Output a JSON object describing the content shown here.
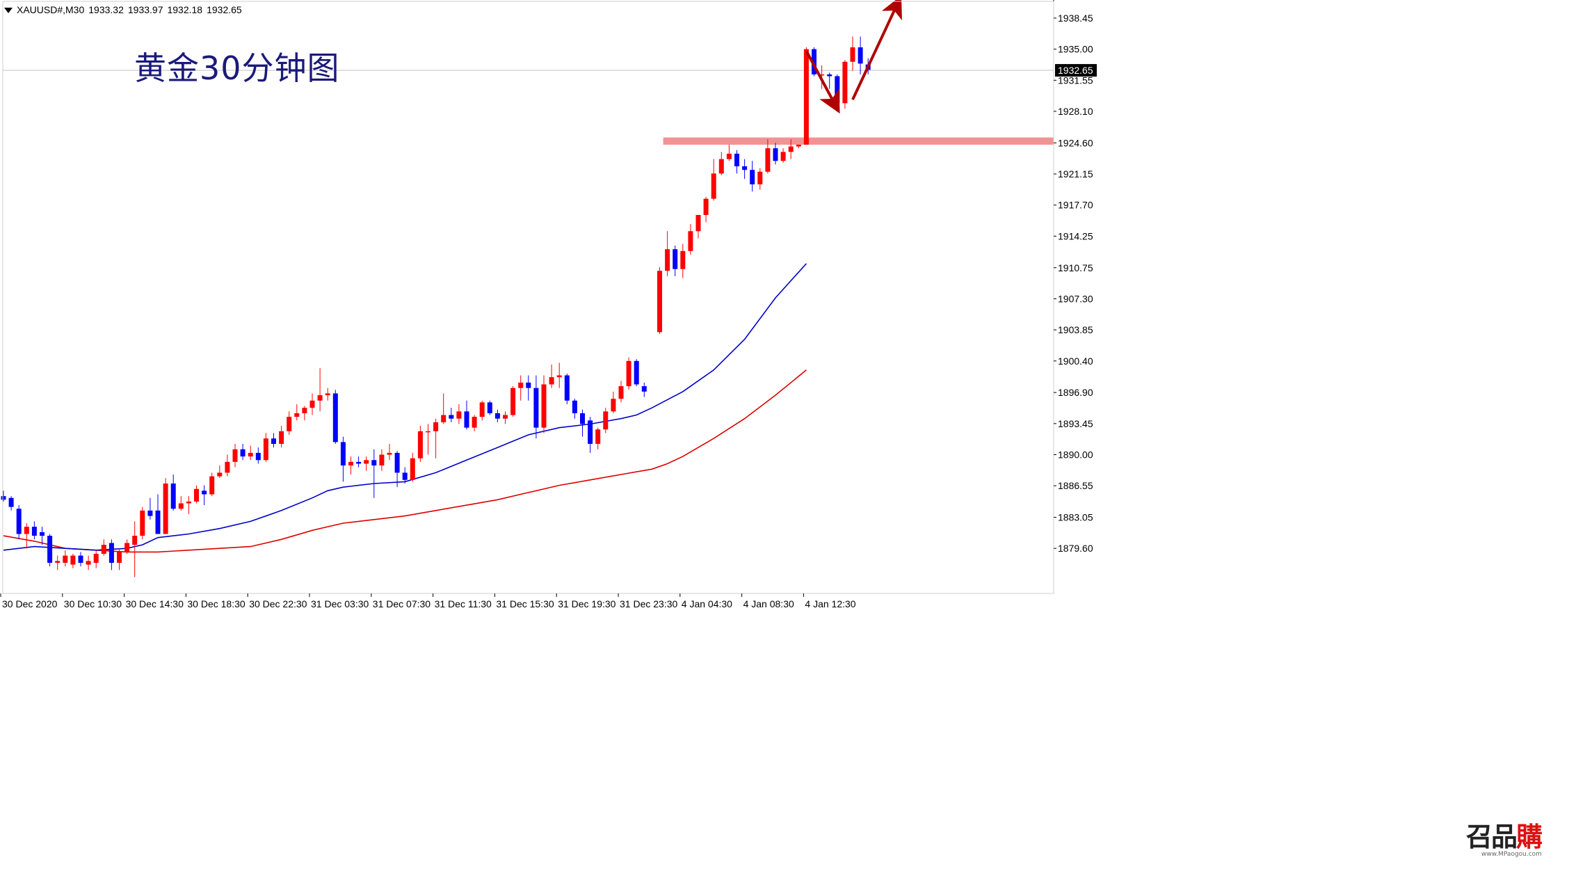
{
  "header": {
    "symbol": "XAUUSD#,M30",
    "open": "1933.32",
    "high": "1933.97",
    "low": "1932.18",
    "close": "1932.65"
  },
  "title": "黄金30分钟图",
  "current_price_label": "1932.65",
  "watermark": {
    "brand_left": "召品",
    "brand_right": "購",
    "url": "www.MPaogou.com"
  },
  "colors": {
    "bull": "#ff0000",
    "bear": "#0000ff",
    "ma_fast": "#0000c8",
    "ma_slow": "#dd0000",
    "zone": "#f08080",
    "arrow": "#b00000",
    "price_tag_bg": "#000000"
  },
  "chart_data": {
    "type": "candlestick",
    "timeframe": "M30",
    "ylim": [
      1874.6,
      1940.3
    ],
    "y_ticks": [
      "1938.45",
      "1935.00",
      "1931.55",
      "1928.10",
      "1924.60",
      "1921.15",
      "1917.70",
      "1914.25",
      "1910.75",
      "1907.30",
      "1903.85",
      "1900.40",
      "1896.90",
      "1893.45",
      "1890.00",
      "1886.55",
      "1883.05",
      "1879.60"
    ],
    "x_ticks": [
      "30 Dec 2020",
      "30 Dec 10:30",
      "30 Dec 14:30",
      "30 Dec 18:30",
      "30 Dec 22:30",
      "31 Dec 03:30",
      "31 Dec 07:30",
      "31 Dec 11:30",
      "31 Dec 15:30",
      "31 Dec 19:30",
      "31 Dec 23:30",
      "4 Jan 04:30",
      "4 Jan 08:30",
      "4 Jan 12:30"
    ],
    "bar_spacing_ticks": 8,
    "candles": [
      [
        1885.4,
        1886.0,
        1884.8,
        1885.0
      ],
      [
        1885.2,
        1885.4,
        1883.8,
        1884.2
      ],
      [
        1884.0,
        1884.4,
        1880.6,
        1881.2
      ],
      [
        1881.2,
        1882.4,
        1879.6,
        1882.0
      ],
      [
        1882.0,
        1882.6,
        1880.6,
        1881.0
      ],
      [
        1881.4,
        1882.0,
        1880.0,
        1881.0
      ],
      [
        1881.0,
        1881.2,
        1877.6,
        1878.0
      ],
      [
        1878.0,
        1878.8,
        1877.2,
        1878.2
      ],
      [
        1878.0,
        1879.4,
        1877.6,
        1878.8
      ],
      [
        1877.8,
        1879.0,
        1877.4,
        1878.8
      ],
      [
        1878.8,
        1879.2,
        1877.6,
        1878.0
      ],
      [
        1877.8,
        1878.8,
        1877.2,
        1878.2
      ],
      [
        1878.0,
        1879.4,
        1877.4,
        1879.0
      ],
      [
        1879.0,
        1880.6,
        1878.8,
        1880.0
      ],
      [
        1880.2,
        1880.6,
        1877.2,
        1878.0
      ],
      [
        1878.0,
        1879.6,
        1877.2,
        1879.2
      ],
      [
        1879.2,
        1880.6,
        1879.0,
        1880.2
      ],
      [
        1880.0,
        1882.6,
        1876.4,
        1881.0
      ],
      [
        1881.0,
        1884.2,
        1880.6,
        1883.8
      ],
      [
        1883.8,
        1885.2,
        1882.8,
        1883.2
      ],
      [
        1883.8,
        1885.6,
        1881.2,
        1881.2
      ],
      [
        1881.2,
        1887.4,
        1881.2,
        1886.8
      ],
      [
        1886.8,
        1887.8,
        1883.8,
        1884.0
      ],
      [
        1884.0,
        1885.4,
        1883.8,
        1884.6
      ],
      [
        1884.6,
        1885.4,
        1883.4,
        1884.8
      ],
      [
        1884.8,
        1886.6,
        1884.6,
        1886.2
      ],
      [
        1886.0,
        1886.6,
        1884.4,
        1885.6
      ],
      [
        1885.6,
        1888.0,
        1885.4,
        1887.6
      ],
      [
        1887.6,
        1888.8,
        1887.4,
        1888.0
      ],
      [
        1888.0,
        1890.0,
        1887.6,
        1889.2
      ],
      [
        1889.2,
        1891.2,
        1888.6,
        1890.6
      ],
      [
        1890.6,
        1891.2,
        1889.4,
        1889.8
      ],
      [
        1889.8,
        1891.0,
        1889.4,
        1890.2
      ],
      [
        1890.2,
        1890.8,
        1889.0,
        1889.4
      ],
      [
        1889.4,
        1892.4,
        1889.2,
        1891.8
      ],
      [
        1891.8,
        1892.4,
        1890.8,
        1891.2
      ],
      [
        1891.2,
        1893.2,
        1890.8,
        1892.6
      ],
      [
        1892.6,
        1894.8,
        1892.2,
        1894.2
      ],
      [
        1894.2,
        1895.6,
        1893.8,
        1894.6
      ],
      [
        1894.6,
        1895.4,
        1893.8,
        1895.2
      ],
      [
        1895.2,
        1896.8,
        1894.4,
        1896.0
      ],
      [
        1896.0,
        1899.6,
        1894.8,
        1896.6
      ],
      [
        1896.6,
        1897.4,
        1896.0,
        1896.8
      ],
      [
        1896.8,
        1897.2,
        1891.2,
        1891.4
      ],
      [
        1891.4,
        1892.0,
        1887.0,
        1888.8
      ],
      [
        1888.8,
        1889.8,
        1887.8,
        1889.2
      ],
      [
        1889.2,
        1889.8,
        1888.6,
        1889.0
      ],
      [
        1889.0,
        1889.8,
        1888.2,
        1889.4
      ],
      [
        1889.4,
        1890.6,
        1885.2,
        1888.8
      ],
      [
        1888.8,
        1890.6,
        1888.2,
        1890.0
      ],
      [
        1890.0,
        1891.2,
        1889.4,
        1890.2
      ],
      [
        1890.2,
        1890.4,
        1886.4,
        1888.0
      ],
      [
        1888.0,
        1888.6,
        1886.8,
        1887.2
      ],
      [
        1887.2,
        1890.2,
        1887.0,
        1889.6
      ],
      [
        1889.6,
        1893.2,
        1889.2,
        1892.6
      ],
      [
        1892.6,
        1893.4,
        1890.0,
        1892.6
      ],
      [
        1892.6,
        1894.0,
        1889.6,
        1893.6
      ],
      [
        1893.6,
        1896.8,
        1893.4,
        1894.4
      ],
      [
        1894.4,
        1895.2,
        1893.6,
        1894.0
      ],
      [
        1894.0,
        1895.6,
        1893.4,
        1894.8
      ],
      [
        1894.8,
        1896.0,
        1892.8,
        1893.0
      ],
      [
        1893.0,
        1894.4,
        1892.6,
        1894.2
      ],
      [
        1894.2,
        1896.0,
        1893.8,
        1895.8
      ],
      [
        1895.8,
        1896.0,
        1894.4,
        1894.6
      ],
      [
        1894.6,
        1895.0,
        1893.6,
        1894.0
      ],
      [
        1894.0,
        1894.8,
        1893.4,
        1894.4
      ],
      [
        1894.4,
        1897.6,
        1894.2,
        1897.4
      ],
      [
        1897.4,
        1898.8,
        1896.0,
        1898.0
      ],
      [
        1898.0,
        1898.8,
        1896.0,
        1897.4
      ],
      [
        1897.4,
        1898.8,
        1891.8,
        1893.0
      ],
      [
        1893.0,
        1898.8,
        1892.4,
        1897.8
      ],
      [
        1897.8,
        1900.0,
        1897.4,
        1898.6
      ],
      [
        1898.6,
        1900.2,
        1897.4,
        1898.8
      ],
      [
        1898.8,
        1899.0,
        1895.6,
        1896.0
      ],
      [
        1896.0,
        1896.2,
        1894.0,
        1894.6
      ],
      [
        1894.6,
        1895.0,
        1892.0,
        1893.4
      ],
      [
        1893.8,
        1894.2,
        1890.2,
        1891.2
      ],
      [
        1891.2,
        1893.0,
        1890.6,
        1892.8
      ],
      [
        1892.8,
        1895.2,
        1892.4,
        1894.8
      ],
      [
        1894.8,
        1897.0,
        1894.6,
        1896.2
      ],
      [
        1896.2,
        1898.2,
        1895.8,
        1897.6
      ],
      [
        1897.6,
        1900.8,
        1897.2,
        1900.4
      ],
      [
        1900.4,
        1900.6,
        1897.6,
        1897.8
      ],
      [
        1897.6,
        1898.0,
        1896.4,
        1897.0
      ],
      null,
      [
        1903.6,
        1910.8,
        1903.4,
        1910.4
      ],
      [
        1910.4,
        1914.8,
        1909.8,
        1912.8
      ],
      [
        1912.8,
        1913.2,
        1909.8,
        1910.6
      ],
      [
        1910.6,
        1913.4,
        1909.6,
        1912.6
      ],
      [
        1912.6,
        1915.6,
        1912.2,
        1914.8
      ],
      [
        1914.8,
        1916.6,
        1914.0,
        1916.6
      ],
      [
        1916.6,
        1918.6,
        1915.8,
        1918.4
      ],
      [
        1918.4,
        1922.8,
        1918.2,
        1921.2
      ],
      [
        1921.2,
        1923.6,
        1921.0,
        1922.8
      ],
      [
        1922.8,
        1924.4,
        1922.6,
        1923.4
      ],
      [
        1923.4,
        1923.8,
        1921.2,
        1922.0
      ],
      [
        1922.0,
        1922.8,
        1920.6,
        1921.6
      ],
      [
        1921.6,
        1922.6,
        1919.2,
        1920.0
      ],
      [
        1920.0,
        1921.8,
        1919.4,
        1921.4
      ],
      [
        1921.4,
        1925.0,
        1921.2,
        1924.0
      ],
      [
        1924.0,
        1924.6,
        1922.2,
        1922.6
      ],
      [
        1922.6,
        1924.0,
        1922.4,
        1923.6
      ],
      [
        1923.6,
        1925.0,
        1922.8,
        1924.2
      ],
      [
        1924.2,
        1924.4,
        1924.0,
        1924.4
      ],
      [
        1924.4,
        1935.2,
        1924.4,
        1935.0
      ],
      [
        1935.0,
        1935.2,
        1932.0,
        1932.2
      ],
      [
        1932.2,
        1933.2,
        1930.6,
        1932.2
      ],
      [
        1932.2,
        1932.4,
        1930.6,
        1932.0
      ],
      [
        1932.0,
        1932.2,
        1928.6,
        1929.0
      ],
      [
        1929.0,
        1933.8,
        1928.4,
        1933.6
      ],
      [
        1933.6,
        1936.4,
        1932.6,
        1935.2
      ],
      [
        1935.2,
        1936.4,
        1932.2,
        1933.4
      ],
      [
        1933.3,
        1934.0,
        1932.2,
        1932.7
      ]
    ],
    "ma_fast": [
      [
        0,
        1879.4
      ],
      [
        4,
        1879.8
      ],
      [
        8,
        1879.6
      ],
      [
        12,
        1879.4
      ],
      [
        16,
        1879.6
      ],
      [
        18,
        1880.0
      ],
      [
        20,
        1880.8
      ],
      [
        24,
        1881.2
      ],
      [
        28,
        1881.8
      ],
      [
        32,
        1882.6
      ],
      [
        36,
        1883.8
      ],
      [
        40,
        1885.2
      ],
      [
        42,
        1886.0
      ],
      [
        44,
        1886.4
      ],
      [
        48,
        1886.8
      ],
      [
        52,
        1887.0
      ],
      [
        56,
        1888.0
      ],
      [
        60,
        1889.4
      ],
      [
        64,
        1890.8
      ],
      [
        68,
        1892.2
      ],
      [
        72,
        1893.0
      ],
      [
        76,
        1893.4
      ],
      [
        80,
        1894.0
      ],
      [
        82,
        1894.4
      ],
      [
        84,
        1895.2
      ],
      [
        88,
        1897.0
      ],
      [
        92,
        1899.4
      ],
      [
        96,
        1902.8
      ],
      [
        100,
        1907.4
      ],
      [
        104,
        1911.2
      ]
    ],
    "ma_slow": [
      [
        0,
        1881.0
      ],
      [
        4,
        1880.4
      ],
      [
        8,
        1879.6
      ],
      [
        12,
        1879.4
      ],
      [
        16,
        1879.2
      ],
      [
        20,
        1879.2
      ],
      [
        24,
        1879.4
      ],
      [
        28,
        1879.6
      ],
      [
        32,
        1879.8
      ],
      [
        36,
        1880.6
      ],
      [
        40,
        1881.6
      ],
      [
        44,
        1882.4
      ],
      [
        48,
        1882.8
      ],
      [
        52,
        1883.2
      ],
      [
        56,
        1883.8
      ],
      [
        60,
        1884.4
      ],
      [
        64,
        1885.0
      ],
      [
        68,
        1885.8
      ],
      [
        72,
        1886.6
      ],
      [
        76,
        1887.2
      ],
      [
        80,
        1887.8
      ],
      [
        84,
        1888.4
      ],
      [
        86,
        1889.0
      ],
      [
        88,
        1889.8
      ],
      [
        92,
        1891.8
      ],
      [
        96,
        1894.0
      ],
      [
        100,
        1896.6
      ],
      [
        104,
        1899.4
      ]
    ],
    "zone": {
      "from_bar": 86,
      "top": 1925.2,
      "bottom": 1924.4
    },
    "current_price": 1932.65,
    "arrows": [
      {
        "from": [
          104,
          1934.8
        ],
        "to": [
          108,
          1928.4
        ]
      },
      {
        "from": [
          110,
          1929.4
        ],
        "to": [
          116,
          1940.4
        ]
      }
    ],
    "grid": false,
    "legend": "none"
  }
}
